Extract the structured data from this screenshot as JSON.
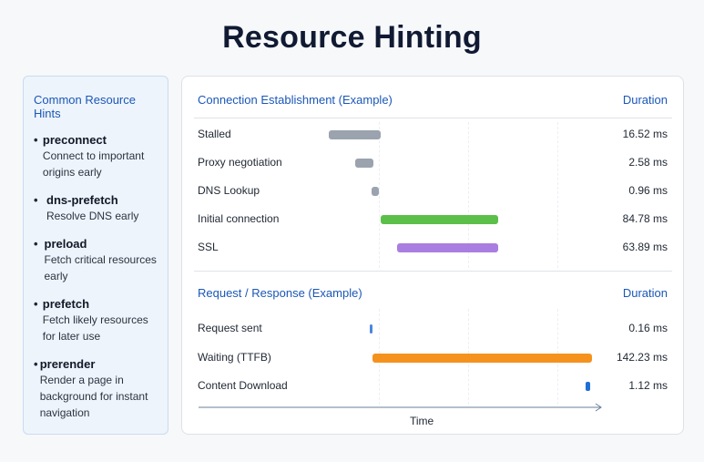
{
  "title": "Resource Hinting",
  "hints": {
    "heading": "Common Resource Hints",
    "items": [
      {
        "name": "preconnect",
        "desc": "Connect to important origins early"
      },
      {
        "name": "dns-prefetch",
        "desc": "Resolve DNS early"
      },
      {
        "name": "preload",
        "desc": "Fetch critical resources early"
      },
      {
        "name": "prefetch",
        "desc": "Fetch likely resources for later use"
      },
      {
        "name": "prerender",
        "desc": "Render a page in background for instant navigation"
      }
    ]
  },
  "connection": {
    "heading": "Connection Establishment (Example)",
    "duration_label": "Duration"
  },
  "request": {
    "heading": "Request / Response (Example)",
    "duration_label": "Duration"
  },
  "axis_label": "Time",
  "chart_data": {
    "type": "gantt",
    "rows": [
      {
        "label": "Stalled",
        "value": "16.52 ms",
        "start": 0.28,
        "end": 0.39,
        "color": "#9aa3ae"
      },
      {
        "label": "Proxy negotiation",
        "value": "2.58 ms",
        "start": 0.335,
        "end": 0.375,
        "color": "#9aa3ae"
      },
      {
        "label": "DNS Lookup",
        "value": "0.96 ms",
        "start": 0.37,
        "end": 0.385,
        "color": "#9aa3ae"
      },
      {
        "label": "Initial connection",
        "value": "84.78 ms",
        "start": 0.39,
        "end": 0.64,
        "color": "#5cbf4a"
      },
      {
        "label": "SSL",
        "value": "63.89 ms",
        "start": 0.425,
        "end": 0.64,
        "color": "#a97ee0"
      },
      {
        "label": "Request sent",
        "value": "0.16 ms",
        "start": 0.367,
        "end": 0.371,
        "color": "#4a86e0"
      },
      {
        "label": "Waiting (TTFB)",
        "value": "142.23 ms",
        "start": 0.373,
        "end": 0.84,
        "color": "#f5921e"
      },
      {
        "label": "Content Download",
        "value": "1.12 ms",
        "start": 0.826,
        "end": 0.836,
        "color": "#1f6fd8"
      }
    ]
  }
}
